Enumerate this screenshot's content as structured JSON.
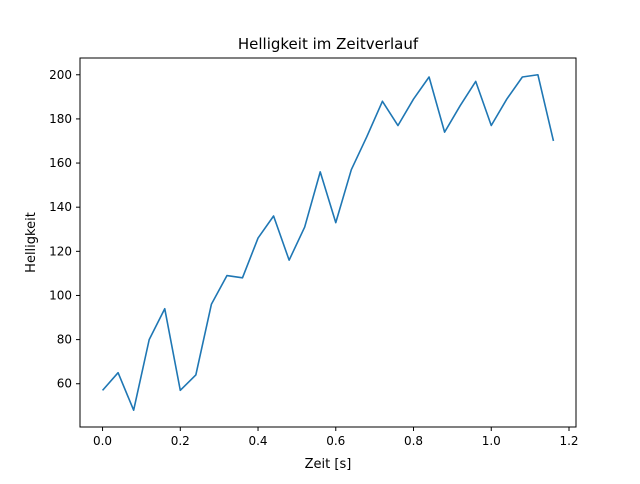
{
  "chart_data": {
    "type": "line",
    "title": "Helligkeit im Zeitverlauf",
    "xlabel": "Zeit [s]",
    "ylabel": "Helligkeit",
    "xlim": [
      -0.058,
      1.218
    ],
    "ylim": [
      40.4,
      207.6
    ],
    "grid": false,
    "x_ticks": [
      0.0,
      0.2,
      0.4,
      0.6,
      0.8,
      1.0,
      1.2
    ],
    "x_tick_labels": [
      "0.0",
      "0.2",
      "0.4",
      "0.6",
      "0.8",
      "1.0",
      "1.2"
    ],
    "y_ticks": [
      60,
      80,
      100,
      120,
      140,
      160,
      180,
      200
    ],
    "y_tick_labels": [
      "60",
      "80",
      "100",
      "120",
      "140",
      "160",
      "180",
      "200"
    ],
    "series": [
      {
        "color": "#1f77b4",
        "x": [
          0.0,
          0.04,
          0.08,
          0.12,
          0.16,
          0.2,
          0.24,
          0.28,
          0.32,
          0.36,
          0.4,
          0.44,
          0.48,
          0.52,
          0.56,
          0.6,
          0.64,
          0.68,
          0.72,
          0.76,
          0.8,
          0.84,
          0.88,
          0.92,
          0.96,
          1.0,
          1.04,
          1.08,
          1.12,
          1.16
        ],
        "y": [
          57,
          65,
          48,
          80,
          94,
          57,
          64,
          96,
          109,
          108,
          126,
          136,
          116,
          131,
          156,
          133,
          157,
          172,
          188,
          177,
          189,
          199,
          174,
          186,
          197,
          177,
          189,
          199,
          200,
          170
        ]
      }
    ]
  }
}
